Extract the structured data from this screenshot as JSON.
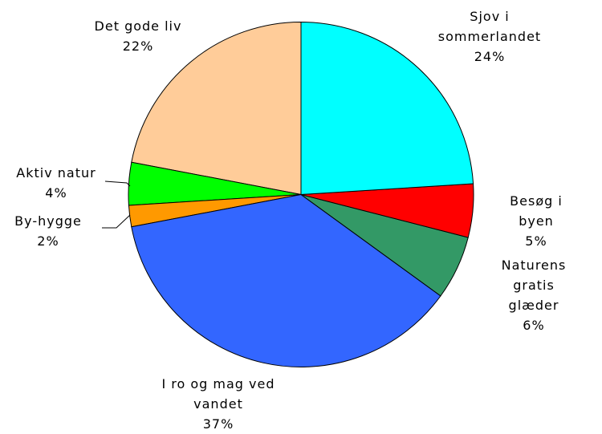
{
  "chart_data": {
    "type": "pie",
    "categories": [
      "Sjov i\nsommerlandet",
      "Besøg i byen",
      "Naturens gratis\nglæder",
      "I ro og mag ved\nvandet",
      "By-hygge",
      "Aktiv natur",
      "Det gode liv"
    ],
    "values": [
      24,
      5,
      6,
      37,
      2,
      4,
      22
    ],
    "value_labels": [
      "24%",
      "5%",
      "6%",
      "37%",
      "2%",
      "4%",
      "22%"
    ],
    "colors": [
      "#00ffff",
      "#ff0000",
      "#339966",
      "#3366ff",
      "#ff9900",
      "#00ff00",
      "#ffcc99"
    ]
  }
}
